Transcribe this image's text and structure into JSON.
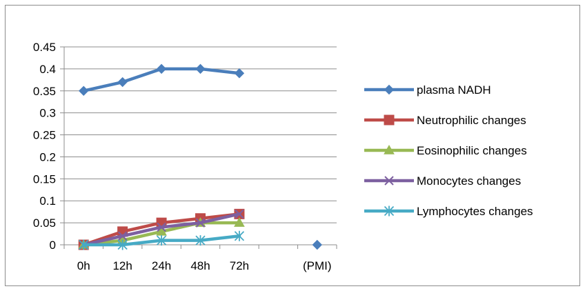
{
  "chart_data": {
    "type": "line",
    "categories": [
      "0h",
      "12h",
      "24h",
      "48h",
      "72h",
      "",
      "(PMI)"
    ],
    "ylim": [
      0,
      0.45
    ],
    "yticks": [
      "0",
      "0.05",
      "0.1",
      "0.15",
      "0.2",
      "0.25",
      "0.3",
      "0.35",
      "0.4",
      "0.45"
    ],
    "grid": true,
    "legend_position": "right",
    "series": [
      {
        "name": "plasma NADH",
        "color": "#4a7ebb",
        "marker": "diamond",
        "values": [
          0.35,
          0.37,
          0.4,
          0.4,
          0.39,
          null,
          0
        ]
      },
      {
        "name": "Neutrophilic changes",
        "color": "#be4b48",
        "marker": "square",
        "values": [
          0,
          0.03,
          0.05,
          0.06,
          0.07,
          null,
          null
        ]
      },
      {
        "name": "Eosinophilic changes",
        "color": "#98b954",
        "marker": "triangle",
        "values": [
          0,
          0.01,
          0.03,
          0.05,
          0.05,
          null,
          null
        ]
      },
      {
        "name": "Monocytes changes",
        "color": "#7d60a0",
        "marker": "x",
        "values": [
          0,
          0.02,
          0.04,
          0.05,
          0.07,
          null,
          null
        ]
      },
      {
        "name": "Lymphocytes changes",
        "color": "#46aac5",
        "marker": "asterisk",
        "values": [
          0,
          0,
          0.01,
          0.01,
          0.02,
          null,
          null
        ]
      }
    ]
  }
}
